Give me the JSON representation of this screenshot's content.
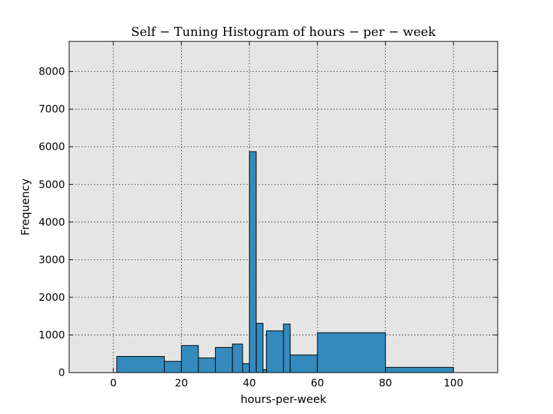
{
  "chart_data": {
    "type": "bar",
    "title": "Self − Tuning Histogram of hours − per − week",
    "xlabel": "hours-per-week",
    "ylabel": "Frequency",
    "xlim": [
      -13,
      113
    ],
    "ylim": [
      0,
      8800
    ],
    "xticks": [
      0,
      20,
      40,
      60,
      80,
      100
    ],
    "yticks": [
      0,
      1000,
      2000,
      3000,
      4000,
      5000,
      6000,
      7000,
      8000
    ],
    "grid": true,
    "grid_style": "dotted",
    "background_color": "#e5e5e5",
    "bar_color": "#348abd",
    "bar_edge_color": "#000000",
    "bins": [
      {
        "x0": 1,
        "x1": 15,
        "value": 430
      },
      {
        "x0": 15,
        "x1": 20,
        "value": 300
      },
      {
        "x0": 20,
        "x1": 25,
        "value": 720
      },
      {
        "x0": 25,
        "x1": 30,
        "value": 390
      },
      {
        "x0": 30,
        "x1": 35,
        "value": 670
      },
      {
        "x0": 35,
        "x1": 38,
        "value": 760
      },
      {
        "x0": 38,
        "x1": 40,
        "value": 240
      },
      {
        "x0": 40,
        "x1": 42,
        "value": 5870
      },
      {
        "x0": 42,
        "x1": 44,
        "value": 1310
      },
      {
        "x0": 44,
        "x1": 45,
        "value": 80
      },
      {
        "x0": 45,
        "x1": 50,
        "value": 1110
      },
      {
        "x0": 50,
        "x1": 52,
        "value": 1290
      },
      {
        "x0": 52,
        "x1": 60,
        "value": 470
      },
      {
        "x0": 60,
        "x1": 80,
        "value": 1060
      },
      {
        "x0": 80,
        "x1": 100,
        "value": 140
      }
    ]
  }
}
